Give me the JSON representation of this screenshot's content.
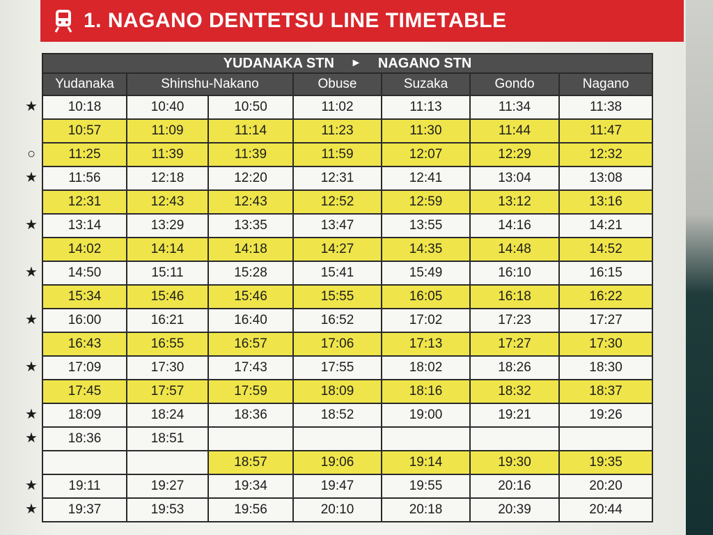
{
  "header": {
    "title": "1. NAGANO DENTETSU LINE TIMETABLE",
    "icon": "train-icon",
    "color": "#d8262b"
  },
  "route": {
    "from": "YUDANAKA STN",
    "to": "NAGANO STN",
    "arrow": "►"
  },
  "stations": [
    "Yudanaka",
    "Shinshu-Nakano",
    "Obuse",
    "Suzaka",
    "Gondo",
    "Nagano"
  ],
  "rows": [
    {
      "mark": "★",
      "highlight": false,
      "times": [
        "10:18",
        "10:40",
        "10:50",
        "11:02",
        "11:13",
        "11:34",
        "11:38"
      ]
    },
    {
      "mark": "",
      "highlight": true,
      "times": [
        "10:57",
        "11:09",
        "11:14",
        "11:23",
        "11:30",
        "11:44",
        "11:47"
      ]
    },
    {
      "mark": "○",
      "highlight": true,
      "times": [
        "11:25",
        "11:39",
        "11:39",
        "11:59",
        "12:07",
        "12:29",
        "12:32"
      ]
    },
    {
      "mark": "★",
      "highlight": false,
      "times": [
        "11:56",
        "12:18",
        "12:20",
        "12:31",
        "12:41",
        "13:04",
        "13:08"
      ]
    },
    {
      "mark": "",
      "highlight": true,
      "times": [
        "12:31",
        "12:43",
        "12:43",
        "12:52",
        "12:59",
        "13:12",
        "13:16"
      ]
    },
    {
      "mark": "★",
      "highlight": false,
      "times": [
        "13:14",
        "13:29",
        "13:35",
        "13:47",
        "13:55",
        "14:16",
        "14:21"
      ]
    },
    {
      "mark": "",
      "highlight": true,
      "times": [
        "14:02",
        "14:14",
        "14:18",
        "14:27",
        "14:35",
        "14:48",
        "14:52"
      ]
    },
    {
      "mark": "★",
      "highlight": false,
      "times": [
        "14:50",
        "15:11",
        "15:28",
        "15:41",
        "15:49",
        "16:10",
        "16:15"
      ]
    },
    {
      "mark": "",
      "highlight": true,
      "times": [
        "15:34",
        "15:46",
        "15:46",
        "15:55",
        "16:05",
        "16:18",
        "16:22"
      ]
    },
    {
      "mark": "★",
      "highlight": false,
      "times": [
        "16:00",
        "16:21",
        "16:40",
        "16:52",
        "17:02",
        "17:23",
        "17:27"
      ]
    },
    {
      "mark": "",
      "highlight": true,
      "times": [
        "16:43",
        "16:55",
        "16:57",
        "17:06",
        "17:13",
        "17:27",
        "17:30"
      ]
    },
    {
      "mark": "★",
      "highlight": false,
      "times": [
        "17:09",
        "17:30",
        "17:43",
        "17:55",
        "18:02",
        "18:26",
        "18:30"
      ]
    },
    {
      "mark": "",
      "highlight": true,
      "times": [
        "17:45",
        "17:57",
        "17:59",
        "18:09",
        "18:16",
        "18:32",
        "18:37"
      ]
    },
    {
      "mark": "★",
      "highlight": false,
      "times": [
        "18:09",
        "18:24",
        "18:36",
        "18:52",
        "19:00",
        "19:21",
        "19:26"
      ]
    },
    {
      "mark": "★",
      "highlight": false,
      "times": [
        "18:36",
        "18:51",
        "",
        "",
        "",
        "",
        ""
      ]
    },
    {
      "mark": "",
      "highlight": "partial",
      "times": [
        "",
        "",
        "18:57",
        "19:06",
        "19:14",
        "19:30",
        "19:35"
      ]
    },
    {
      "mark": "★",
      "highlight": false,
      "times": [
        "19:11",
        "19:27",
        "19:34",
        "19:47",
        "19:55",
        "20:16",
        "20:20"
      ]
    },
    {
      "mark": "★",
      "highlight": false,
      "times": [
        "19:37",
        "19:53",
        "19:56",
        "20:10",
        "20:18",
        "20:39",
        "20:44"
      ]
    }
  ],
  "colors": {
    "highlight": "#efe54a",
    "header_bg": "#4e4e4e"
  }
}
